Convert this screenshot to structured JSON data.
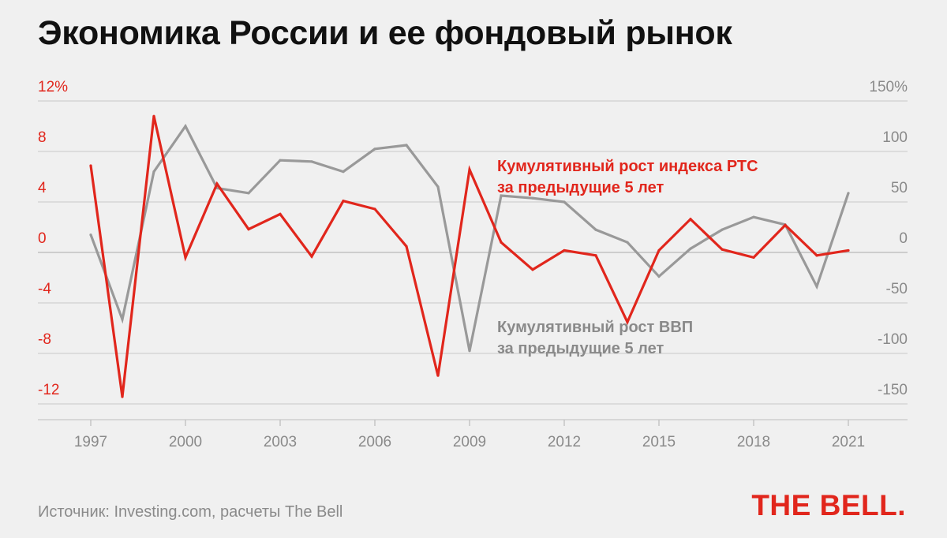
{
  "title": "Экономика России и ее фондовый рынок",
  "source": "Источник: Investing.com, расчеты The Bell",
  "logo": "THE BELL.",
  "colors": {
    "red": "#e1261c",
    "grey": "#999999",
    "grid": "#cfcfcf"
  },
  "chart_data": {
    "type": "line",
    "x": [
      1997,
      1998,
      1999,
      2000,
      2001,
      2002,
      2003,
      2004,
      2005,
      2006,
      2007,
      2008,
      2009,
      2010,
      2011,
      2012,
      2013,
      2014,
      2015,
      2016,
      2017,
      2018,
      2019,
      2020,
      2021
    ],
    "x_tick_labels": [
      "1997",
      "2000",
      "2003",
      "2006",
      "2009",
      "2012",
      "2015",
      "2018",
      "2021"
    ],
    "x_ticks": [
      1997,
      2000,
      2003,
      2006,
      2009,
      2012,
      2015,
      2018,
      2021
    ],
    "y_left": {
      "range": [
        -12,
        12
      ],
      "ticks": [
        -12,
        -8,
        -4,
        0,
        4,
        8,
        12
      ],
      "tick_labels": [
        "-12",
        "-8",
        "-4",
        "0",
        "4",
        "8",
        "12%"
      ]
    },
    "y_right": {
      "range": [
        -150,
        150
      ],
      "ticks": [
        -150,
        -100,
        -50,
        0,
        50,
        100,
        150
      ],
      "tick_labels": [
        "-150",
        "-100",
        "-50",
        "0",
        "50",
        "100",
        "150%"
      ]
    },
    "grid": true,
    "series": [
      {
        "name": "Кумулятивный рост ВВП за предыдущие 5 лет",
        "label_lines": [
          "Кумулятивный рост ВВП",
          "за предыдущие 5 лет"
        ],
        "axis": "left",
        "color": "#999999",
        "values": [
          1.4,
          -5.3,
          6.4,
          10.0,
          5.1,
          4.7,
          7.3,
          7.2,
          6.4,
          8.2,
          8.5,
          5.2,
          -7.8,
          4.5,
          4.3,
          4.0,
          1.8,
          0.8,
          -1.9,
          0.3,
          1.8,
          2.8,
          2.2,
          -2.7,
          4.7
        ]
      },
      {
        "name": "Кумулятивный рост индекса РТС за предыдущие 5 лет",
        "label_lines": [
          "Кумулятивный рост индекса РТС",
          "за предыдущие 5 лет"
        ],
        "axis": "right",
        "color": "#e1261c",
        "values": [
          86,
          -143,
          135,
          -5,
          68,
          23,
          38,
          -4,
          51,
          43,
          6,
          -122,
          82,
          10,
          -17,
          2,
          -3,
          -69,
          2,
          33,
          3,
          -5,
          27,
          -3,
          2
        ]
      }
    ]
  }
}
